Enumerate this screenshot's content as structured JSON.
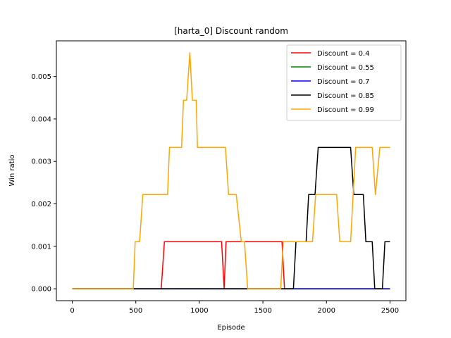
{
  "chart_data": {
    "type": "line",
    "title": "[harta_0] Discount  random",
    "xlabel": "Episode",
    "ylabel": "Win ratio",
    "xlim": [
      -125,
      2625
    ],
    "ylim": [
      -0.00028,
      0.00584
    ],
    "xticks": [
      0,
      500,
      1000,
      1500,
      2000,
      2500
    ],
    "xtick_labels": [
      "0",
      "500",
      "1000",
      "1500",
      "2000",
      "2500"
    ],
    "yticks": [
      0.0,
      0.001,
      0.002,
      0.003,
      0.004,
      0.005
    ],
    "ytick_labels": [
      "0.000",
      "0.001",
      "0.002",
      "0.003",
      "0.004",
      "0.005"
    ],
    "grid": false,
    "legend_position": "top-right",
    "series": [
      {
        "name": "Discount = 0.4",
        "color": "#ff0000",
        "points": [
          [
            0,
            0
          ],
          [
            700,
            0
          ],
          [
            725,
            0.00111
          ],
          [
            1175,
            0.00111
          ],
          [
            1195,
            0
          ],
          [
            1210,
            0.00111
          ],
          [
            1650,
            0.00111
          ],
          [
            1670,
            0
          ],
          [
            2500,
            0
          ]
        ]
      },
      {
        "name": "Discount = 0.55",
        "color": "#008000",
        "points": [
          [
            0,
            0
          ],
          [
            2500,
            0
          ]
        ]
      },
      {
        "name": "Discount = 0.7",
        "color": "#0000ff",
        "points": [
          [
            0,
            0
          ],
          [
            2500,
            0
          ]
        ]
      },
      {
        "name": "Discount = 0.85",
        "color": "#000000",
        "points": [
          [
            0,
            0
          ],
          [
            1740,
            0
          ],
          [
            1760,
            0.00111
          ],
          [
            1840,
            0.00111
          ],
          [
            1860,
            0.00222
          ],
          [
            1910,
            0.00222
          ],
          [
            1935,
            0.00333
          ],
          [
            2190,
            0.00333
          ],
          [
            2215,
            0.00222
          ],
          [
            2290,
            0.00222
          ],
          [
            2310,
            0.00111
          ],
          [
            2360,
            0.00111
          ],
          [
            2380,
            0
          ],
          [
            2440,
            0
          ],
          [
            2460,
            0.00111
          ],
          [
            2500,
            0.00111
          ]
        ]
      },
      {
        "name": "Discount = 0.99",
        "color": "#ffa500",
        "points": [
          [
            0,
            0
          ],
          [
            480,
            0
          ],
          [
            495,
            0.00111
          ],
          [
            530,
            0.00111
          ],
          [
            555,
            0.00222
          ],
          [
            750,
            0.00222
          ],
          [
            765,
            0.00333
          ],
          [
            860,
            0.00333
          ],
          [
            875,
            0.00444
          ],
          [
            900,
            0.00444
          ],
          [
            925,
            0.00556
          ],
          [
            945,
            0.00444
          ],
          [
            975,
            0.00444
          ],
          [
            985,
            0.00333
          ],
          [
            1205,
            0.00333
          ],
          [
            1230,
            0.00222
          ],
          [
            1290,
            0.00222
          ],
          [
            1330,
            0.00111
          ],
          [
            1355,
            0.00111
          ],
          [
            1380,
            0
          ],
          [
            1640,
            0
          ],
          [
            1660,
            0.00111
          ],
          [
            1890,
            0.00111
          ],
          [
            1915,
            0.00222
          ],
          [
            2080,
            0.00222
          ],
          [
            2105,
            0.00111
          ],
          [
            2190,
            0.00111
          ],
          [
            2210,
            0.00222
          ],
          [
            2230,
            0.00333
          ],
          [
            2360,
            0.00333
          ],
          [
            2385,
            0.00222
          ],
          [
            2420,
            0.00333
          ],
          [
            2500,
            0.00333
          ]
        ]
      }
    ]
  }
}
